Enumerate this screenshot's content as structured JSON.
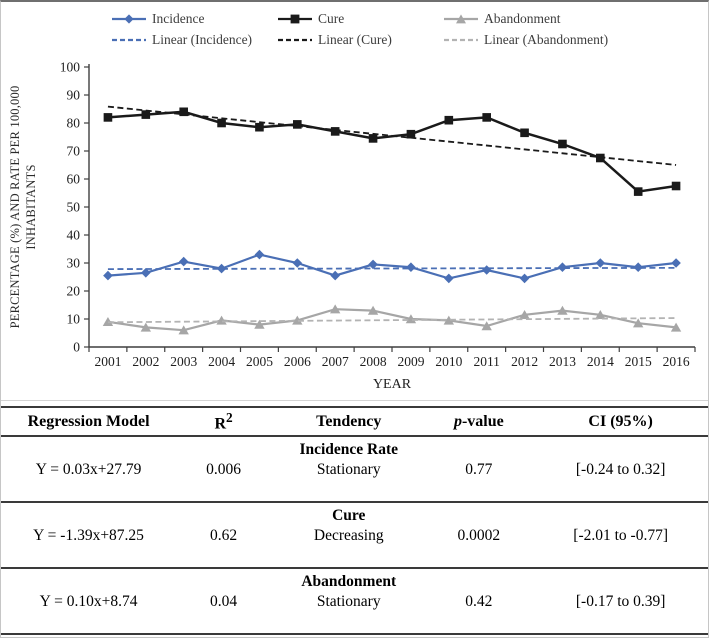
{
  "chart": {
    "legend": [
      {
        "label": "Incidence",
        "line": "solid",
        "marker": "diamond",
        "color": "#4a6fb5"
      },
      {
        "label": "Cure",
        "line": "solid",
        "marker": "square",
        "color": "#1a1a1a"
      },
      {
        "label": "Abandonment",
        "line": "solid",
        "marker": "triangle",
        "color": "#a6a6a6"
      },
      {
        "label": "Linear (Incidence)",
        "line": "dashed",
        "marker": "none",
        "color": "#4a6fb5"
      },
      {
        "label": "Linear (Cure)",
        "line": "dashed",
        "marker": "none",
        "color": "#1a1a1a"
      },
      {
        "label": "Linear (Abandonment)",
        "line": "dashed",
        "marker": "none",
        "color": "#b3b3b3"
      }
    ]
  },
  "chart_data": {
    "type": "line",
    "x": [
      2001,
      2002,
      2003,
      2004,
      2005,
      2006,
      2007,
      2008,
      2009,
      2010,
      2011,
      2012,
      2013,
      2014,
      2015,
      2016
    ],
    "series": [
      {
        "name": "Incidence",
        "color": "#4a6fb5",
        "marker": "diamond",
        "values": [
          25.5,
          26.5,
          30.5,
          28,
          33,
          30,
          25.5,
          29.5,
          28.5,
          24.5,
          27.5,
          24.5,
          28.5,
          30,
          28.5,
          30
        ]
      },
      {
        "name": "Cure",
        "color": "#1a1a1a",
        "marker": "square",
        "values": [
          82,
          83,
          84,
          80,
          78.5,
          79.5,
          77,
          74.5,
          76,
          81,
          82,
          76.5,
          72.5,
          67.5,
          55.5,
          57.5
        ]
      },
      {
        "name": "Abandonment",
        "color": "#a6a6a6",
        "marker": "triangle",
        "values": [
          9,
          7,
          6,
          9.5,
          8,
          9.5,
          13.5,
          13,
          10,
          9.5,
          7.5,
          11.5,
          13,
          11.5,
          8.5,
          7
        ]
      },
      {
        "name": "Linear (Incidence)",
        "color": "#4a6fb5",
        "style": "dashed",
        "trend": {
          "slope": 0.03,
          "intercept": 27.79
        }
      },
      {
        "name": "Linear (Cure)",
        "color": "#1a1a1a",
        "style": "dashed",
        "trend": {
          "slope": -1.39,
          "intercept": 87.25
        }
      },
      {
        "name": "Linear (Abandonment)",
        "color": "#b3b3b3",
        "style": "dashed",
        "trend": {
          "slope": 0.1,
          "intercept": 8.74
        }
      }
    ],
    "xlabel": "YEAR",
    "ylabel_line1": "PERCENTAGE (%) AND RATE PER 100,000",
    "ylabel_line2": "INHABITANTS",
    "ylim": [
      0,
      100
    ],
    "ytick_step": 10,
    "grid": false,
    "legend_position": "top"
  },
  "table": {
    "headers": [
      {
        "text": "Regression Model"
      },
      {
        "text": "R",
        "sup": "2"
      },
      {
        "text": "Tendency"
      },
      {
        "prefix_italic": "p",
        "text": "-value"
      },
      {
        "text": "CI (95%)"
      }
    ],
    "sections": [
      {
        "group": "Incidence Rate",
        "model": "Y = 0.03x+27.79",
        "r2": "0.006",
        "tendency": "Stationary",
        "p_value": "0.77",
        "ci": "[-0.24 to 0.32]"
      },
      {
        "group": "Cure",
        "model": "Y = -1.39x+87.25",
        "r2": "0.62",
        "tendency": "Decreasing",
        "p_value": "0.0002",
        "ci": "[-2.01 to -0.77]"
      },
      {
        "group": "Abandonment",
        "model": "Y = 0.10x+8.74",
        "r2": "0.04",
        "tendency": "Stationary",
        "p_value": "0.42",
        "ci": "[-0.17 to 0.39]"
      }
    ]
  }
}
